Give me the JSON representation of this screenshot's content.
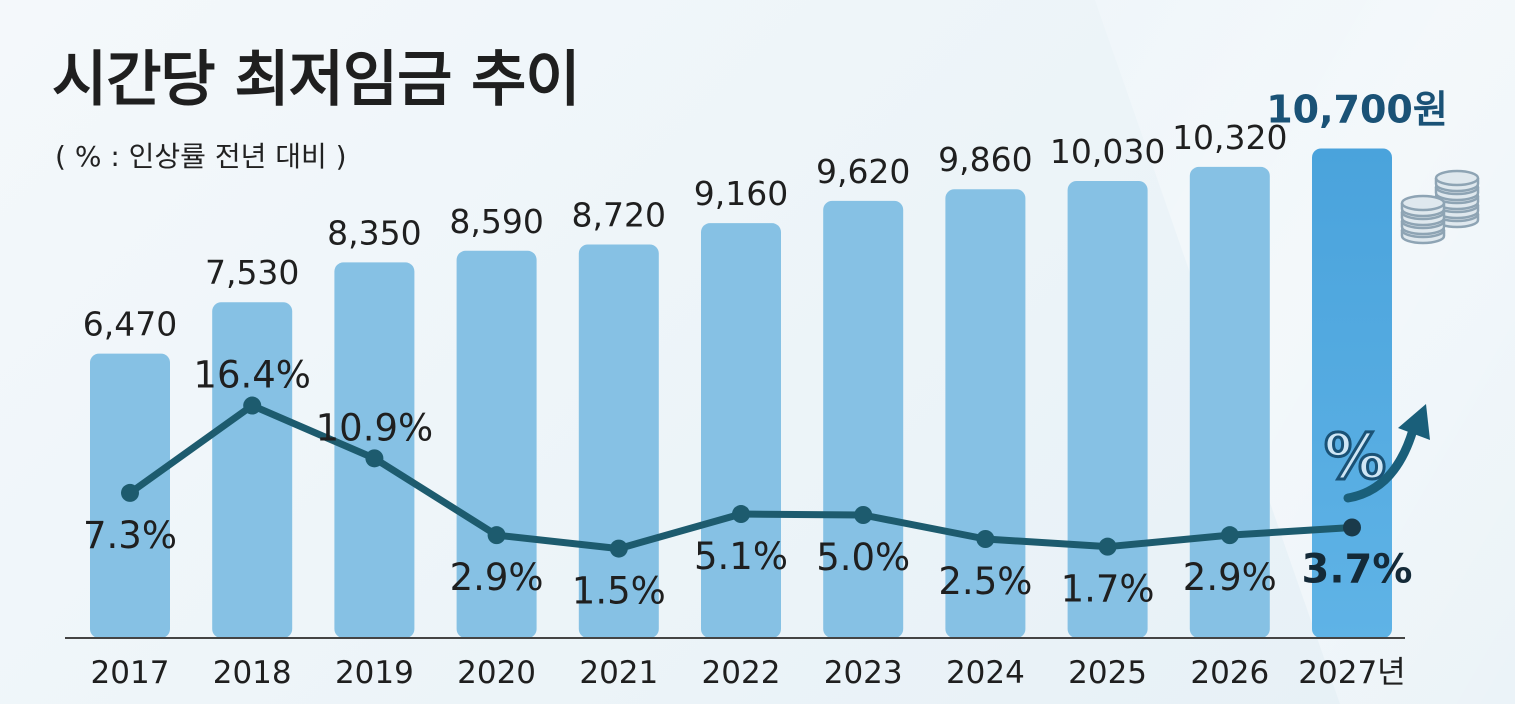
{
  "chart_data": {
    "type": "bar",
    "title": "시간당 최저임금 추이",
    "subtitle": "( % : 인상률 전년 대비 )",
    "categories": [
      "2017",
      "2018",
      "2019",
      "2020",
      "2021",
      "2022",
      "2023",
      "2024",
      "2025",
      "2026",
      "2027년"
    ],
    "value_labels": [
      "6,470",
      "7,530",
      "8,350",
      "8,590",
      "8,720",
      "9,160",
      "9,620",
      "9,860",
      "10,030",
      "10,320",
      "10,700원"
    ],
    "series": [
      {
        "type": "bar",
        "values": [
          6470,
          7530,
          8350,
          8590,
          8720,
          9160,
          9620,
          9860,
          10030,
          10320,
          10700
        ]
      },
      {
        "type": "line",
        "values": [
          7.3,
          16.4,
          10.9,
          2.9,
          1.5,
          5.1,
          5.0,
          2.5,
          1.7,
          2.9,
          3.7
        ]
      }
    ],
    "line_labels": [
      "7.3%",
      "16.4%",
      "10.9%",
      "2.9%",
      "1.5%",
      "5.1%",
      "5.0%",
      "2.5%",
      "1.7%",
      "2.9%",
      "3.7%"
    ],
    "highlight_index": 10,
    "grid": false,
    "colors": {
      "bar": "#86c1e4",
      "bar_highlight": "#4fa8de",
      "line": "#1d5b6e",
      "highlight_text": "#1a5276",
      "text": "#1f1f1f",
      "axis": "#444444",
      "coins": "#8ea4b4",
      "arrow": "#1a5f7a",
      "percent_badge": "#cfe6f5"
    },
    "decorations": {
      "percent_symbol": "%",
      "coins_icon": "coins-icon",
      "arrow_icon": "arrow-up-right-icon"
    }
  }
}
